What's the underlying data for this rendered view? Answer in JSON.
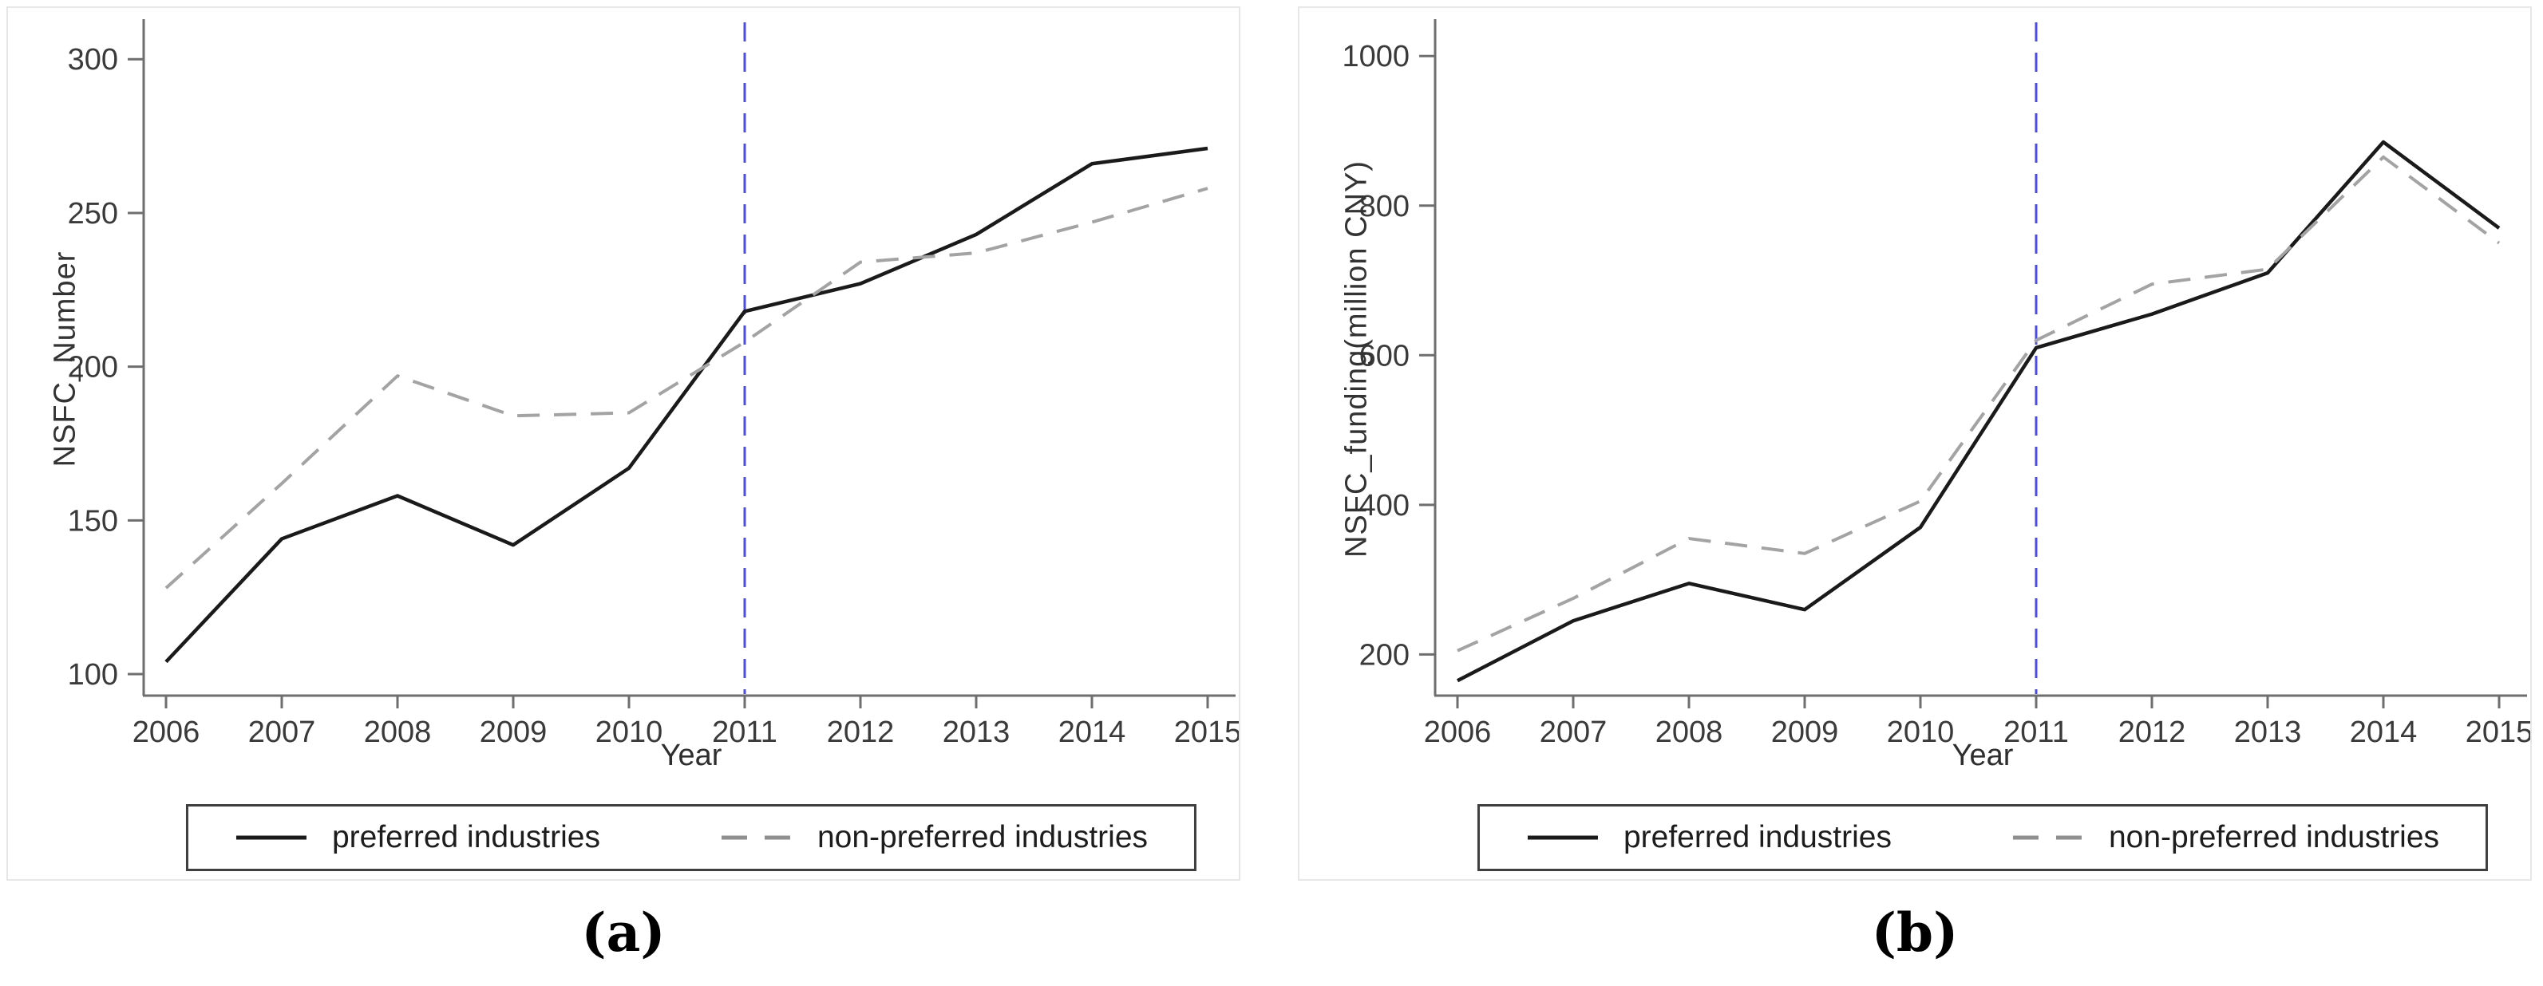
{
  "page": {
    "background": "#ffffff"
  },
  "legend": {
    "preferred": "preferred industries",
    "non_preferred": "non-preferred industries"
  },
  "captions": {
    "a": "(a)",
    "b": "(b)"
  },
  "colors": {
    "preferred_line": "#1a1a1a",
    "non_preferred_line": "#a3a3a3",
    "legend_dash": "#8f8f8f",
    "event_line": "#4c4ce0",
    "axis": "#6e6e6e",
    "tick_label": "#3a3a3a",
    "panel_border": "#e7e7e7",
    "legend_border": "#3f3f3f"
  },
  "chart_data": [
    {
      "type": "line",
      "panel": "a",
      "xlabel": "Year",
      "ylabel": "NSFC_Number",
      "x": [
        2006,
        2007,
        2008,
        2009,
        2010,
        2011,
        2012,
        2013,
        2014,
        2015
      ],
      "yticks": [
        100,
        150,
        200,
        250,
        300
      ],
      "ylim": [
        100,
        300
      ],
      "ylim_draw": [
        93,
        312
      ],
      "grid": "off",
      "legend_position": "bottom",
      "series": [
        {
          "name": "preferred industries",
          "style": "solid",
          "color": "#1a1a1a",
          "values": [
            104,
            144,
            158,
            142,
            167,
            218,
            227,
            243,
            266,
            271
          ]
        },
        {
          "name": "non-preferred industries",
          "style": "dashed",
          "color": "#a3a3a3",
          "values": [
            128,
            162,
            197,
            184,
            185,
            208,
            234,
            237,
            247,
            258
          ]
        }
      ],
      "vline": {
        "x": 2011,
        "color": "#4c4ce0",
        "style": "dashed"
      }
    },
    {
      "type": "line",
      "panel": "b",
      "xlabel": "Year",
      "ylabel": "NSFC_funding(million CNY)",
      "x": [
        2006,
        2007,
        2008,
        2009,
        2010,
        2011,
        2012,
        2013,
        2014,
        2015
      ],
      "yticks": [
        200,
        400,
        600,
        800,
        1000
      ],
      "ylim": [
        200,
        1000
      ],
      "ylim_draw": [
        145,
        1045
      ],
      "grid": "off",
      "legend_position": "bottom",
      "series": [
        {
          "name": "preferred industries",
          "style": "solid",
          "color": "#1a1a1a",
          "values": [
            165,
            245,
            295,
            260,
            370,
            610,
            655,
            710,
            885,
            770
          ]
        },
        {
          "name": "non-preferred industries",
          "style": "dashed",
          "color": "#a3a3a3",
          "values": [
            205,
            275,
            355,
            335,
            405,
            620,
            695,
            715,
            865,
            750
          ]
        }
      ],
      "vline": {
        "x": 2011,
        "color": "#4c4ce0",
        "style": "dashed"
      }
    }
  ]
}
